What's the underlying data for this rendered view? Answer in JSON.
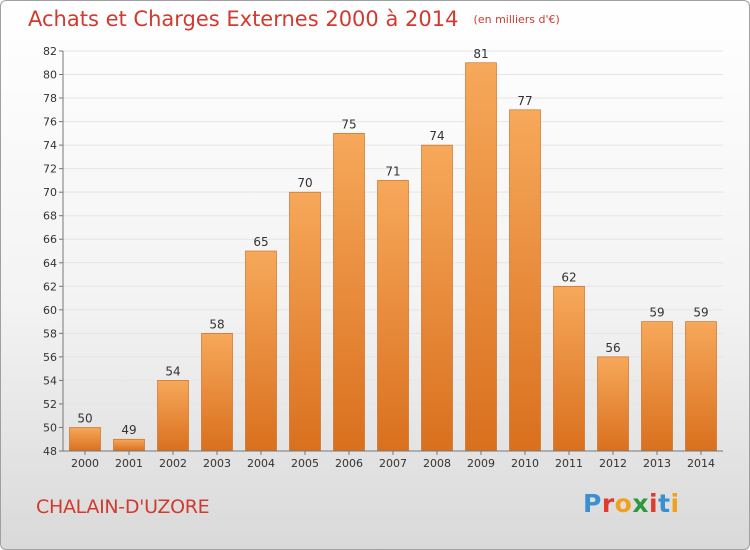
{
  "header": {
    "title": "Achats et Charges Externes 2000 à 2014",
    "subtitle": "(en milliers d'€)"
  },
  "footer": {
    "commune": "CHALAIN-D'UZORE",
    "logo_text": "Proxiti",
    "logo_colors": [
      "#3a8fd0",
      "#e03b2c",
      "#f1a11e",
      "#2a9a3d",
      "#e03b2c",
      "#3a8fd0",
      "#f1a11e"
    ]
  },
  "colors": {
    "bar_top": "#f7a85a",
    "bar_bottom": "#d9701e",
    "bar_edge": "#c86418",
    "grid": "#e5e5e5",
    "axis": "#777777",
    "text": "#333333",
    "accent": "#d13a2e"
  },
  "chart_data": {
    "type": "bar",
    "categories": [
      "2000",
      "2001",
      "2002",
      "2003",
      "2004",
      "2005",
      "2006",
      "2007",
      "2008",
      "2009",
      "2010",
      "2011",
      "2012",
      "2013",
      "2014"
    ],
    "values": [
      50,
      49,
      54,
      58,
      65,
      70,
      75,
      71,
      74,
      81,
      77,
      62,
      56,
      59,
      59
    ],
    "data_labels": [
      "50",
      "49",
      "54",
      "58",
      "65",
      "70",
      "75",
      "71",
      "74",
      "81",
      "77",
      "62",
      "56",
      "59",
      "59"
    ],
    "title": "Achats et Charges Externes 2000 à 2014",
    "xlabel": "",
    "ylabel": "",
    "ylim": [
      48,
      82
    ],
    "yticks": [
      48,
      50,
      52,
      54,
      56,
      58,
      60,
      62,
      64,
      66,
      68,
      70,
      72,
      74,
      76,
      78,
      80,
      82
    ],
    "grid": true,
    "legend": "none"
  }
}
